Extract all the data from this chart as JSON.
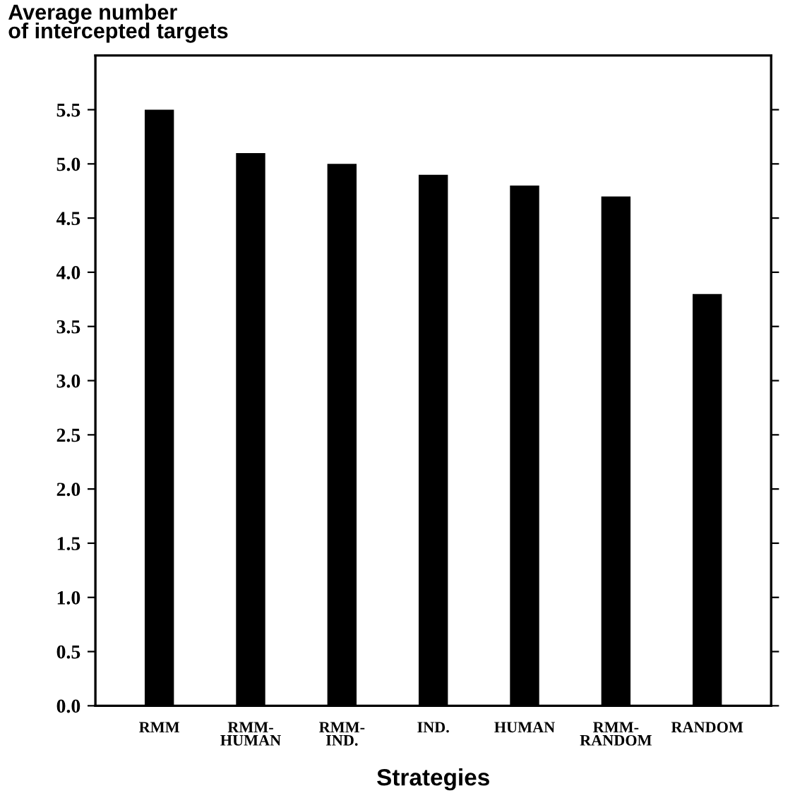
{
  "chart_data": {
    "type": "bar",
    "ylabel": "Average number\nof intercepted targets",
    "xlabel": "Strategies",
    "categories": [
      "RMM",
      "RMM-\nHUMAN",
      "RMM-\nIND.",
      "IND.",
      "HUMAN",
      "RMM-\nRANDOM",
      "RANDOM"
    ],
    "values": [
      5.5,
      5.1,
      5.0,
      4.9,
      4.8,
      4.7,
      3.8
    ],
    "color": "#000000",
    "ylim": [
      0,
      6.0
    ],
    "yticks": [
      {
        "value": 0,
        "label": "0.0"
      },
      0.5,
      {
        "value": 1,
        "label": "1.0"
      },
      1.5,
      {
        "value": 2,
        "label": "2.0"
      },
      2.5,
      {
        "value": 3,
        "label": "3.0"
      },
      3.5,
      {
        "value": 4,
        "label": "4.0"
      },
      4.5,
      {
        "value": 5,
        "label": "5.0"
      },
      5.5
    ],
    "grid": false,
    "legend": false
  }
}
